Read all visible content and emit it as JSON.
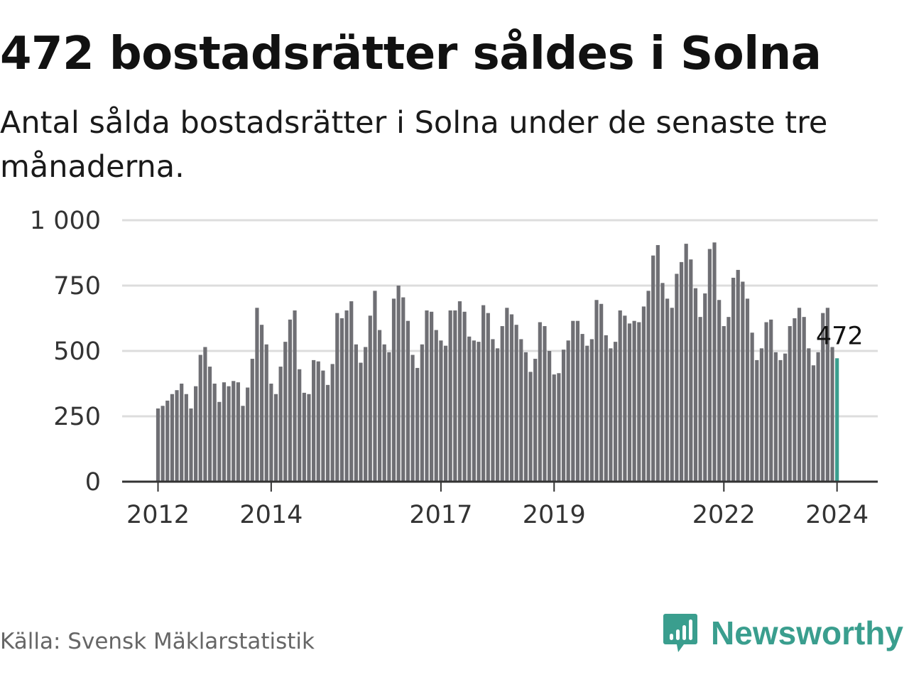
{
  "header": {
    "title": "472 bostadsrätter såldes i Solna",
    "subtitle": "Antal sålda bostadsrätter i Solna under de senaste tre månaderna."
  },
  "footer": {
    "source": "Källa: Svensk Mäklarstatistik",
    "brand": "Newsworthy",
    "brand_icon": "bar-chart-speech-bubble-icon"
  },
  "colors": {
    "bar": "#6f6f74",
    "highlight": "#3a9e8e",
    "grid": "#dddddd",
    "axis": "#333333",
    "brand": "#3a9e8e"
  },
  "chart_data": {
    "type": "bar",
    "title": "472 bostadsrätter såldes i Solna",
    "xlabel": "",
    "ylabel": "",
    "ylim": [
      0,
      1000
    ],
    "yticks": [
      {
        "value": 0,
        "label": "0"
      },
      {
        "value": 250,
        "label": "250"
      },
      {
        "value": 500,
        "label": "500"
      },
      {
        "value": 750,
        "label": "750"
      },
      {
        "value": 1000,
        "label": "1 000"
      }
    ],
    "xticks": [
      {
        "index": 0,
        "label": "2012"
      },
      {
        "index": 24,
        "label": "2014"
      },
      {
        "index": 60,
        "label": "2017"
      },
      {
        "index": 84,
        "label": "2019"
      },
      {
        "index": 120,
        "label": "2022"
      },
      {
        "index": 144,
        "label": "2024"
      }
    ],
    "grid": true,
    "highlight_index": 144,
    "annotation": {
      "index": 144,
      "label": "472"
    },
    "values": [
      280,
      290,
      310,
      335,
      350,
      375,
      335,
      280,
      365,
      485,
      515,
      440,
      375,
      305,
      380,
      365,
      385,
      380,
      290,
      360,
      470,
      665,
      600,
      525,
      375,
      335,
      440,
      535,
      620,
      655,
      430,
      340,
      335,
      465,
      460,
      425,
      370,
      450,
      645,
      625,
      655,
      690,
      525,
      455,
      515,
      635,
      730,
      580,
      525,
      495,
      700,
      750,
      705,
      615,
      485,
      435,
      525,
      655,
      650,
      580,
      540,
      520,
      655,
      655,
      690,
      650,
      555,
      540,
      535,
      675,
      645,
      545,
      510,
      595,
      665,
      640,
      600,
      545,
      495,
      420,
      470,
      610,
      595,
      500,
      410,
      415,
      505,
      540,
      615,
      615,
      565,
      520,
      545,
      695,
      680,
      560,
      510,
      535,
      655,
      635,
      605,
      615,
      610,
      670,
      730,
      865,
      905,
      760,
      700,
      665,
      795,
      840,
      910,
      850,
      740,
      630,
      720,
      890,
      915,
      695,
      595,
      630,
      780,
      810,
      765,
      700,
      570,
      465,
      510,
      610,
      620,
      495,
      465,
      490,
      595,
      625,
      665,
      630,
      510,
      445,
      495,
      645,
      665,
      515,
      472
    ]
  }
}
